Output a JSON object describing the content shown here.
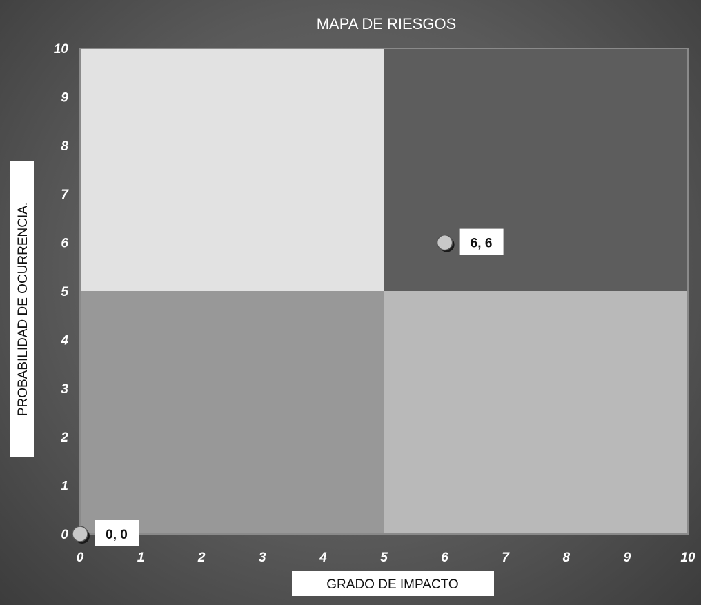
{
  "chart_data": {
    "type": "scatter",
    "title": "MAPA DE RIESGOS",
    "xlabel": "GRADO  DE  IMPACTO",
    "ylabel": "PROBABILIDAD  DE OCURRENCIA.",
    "xlim": [
      0,
      10
    ],
    "ylim": [
      0,
      10
    ],
    "xticks": [
      "0",
      "1",
      "2",
      "3",
      "4",
      "5",
      "6",
      "7",
      "8",
      "9",
      "10"
    ],
    "yticks": [
      "0",
      "1",
      "2",
      "3",
      "4",
      "5",
      "6",
      "7",
      "8",
      "9",
      "10"
    ],
    "quadrants": [
      {
        "x": [
          0,
          5
        ],
        "y": [
          5,
          10
        ],
        "color": "#e2e2e2"
      },
      {
        "x": [
          5,
          10
        ],
        "y": [
          5,
          10
        ],
        "color": "#5d5d5d"
      },
      {
        "x": [
          0,
          5
        ],
        "y": [
          0,
          5
        ],
        "color": "#989898"
      },
      {
        "x": [
          5,
          10
        ],
        "y": [
          0,
          5
        ],
        "color": "#b9b9b9"
      }
    ],
    "points": [
      {
        "x": 0,
        "y": 0,
        "label": "0, 0"
      },
      {
        "x": 6,
        "y": 6,
        "label": "6, 6"
      }
    ],
    "grid": false,
    "colors": {
      "marker": "#c8c8c8",
      "label_bg": "#ffffff",
      "tick_text": "#ffffff"
    }
  }
}
